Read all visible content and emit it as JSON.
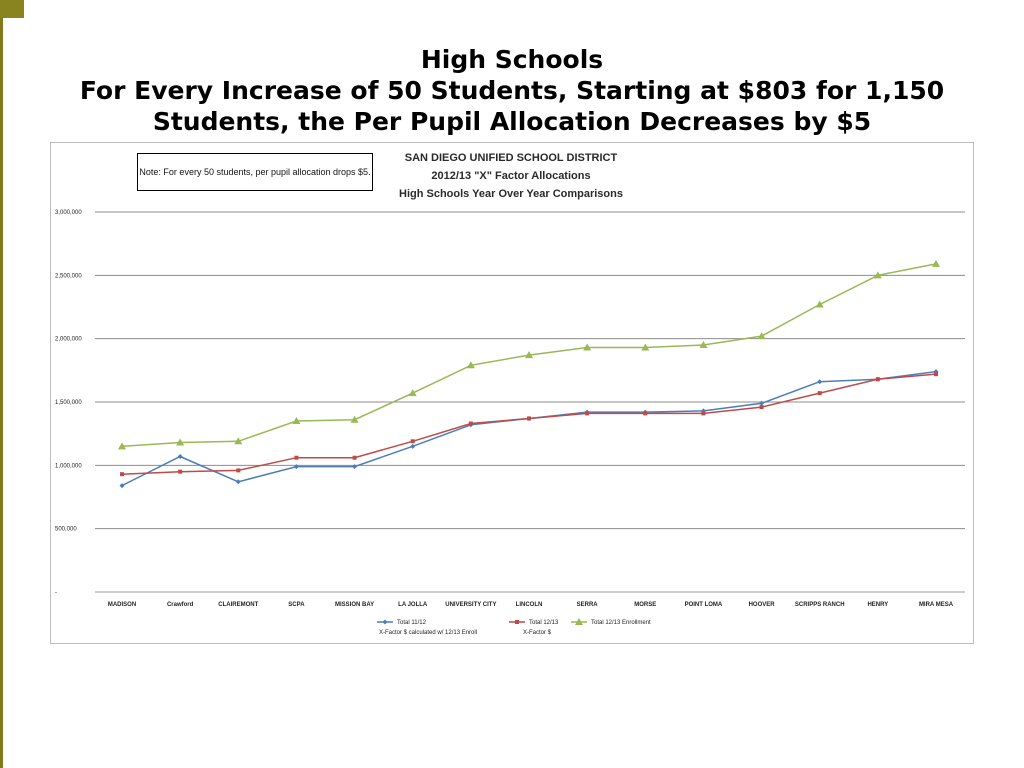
{
  "slide": {
    "title_lines": [
      "High Schools",
      "For Every Increase of 50 Students, Starting at $803 for 1,150",
      "Students, the Per Pupil Allocation Decreases by $5"
    ],
    "accent_color": "#7f7a1c"
  },
  "chart_data": {
    "type": "line",
    "title_lines": [
      "SAN DIEGO UNIFIED SCHOOL DISTRICT",
      "2012/13 \"X\" Factor Allocations",
      "High Schools Year Over Year Comparisons"
    ],
    "note": "Note: For every 50 students, per pupil allocation drops $5.",
    "categories": [
      "MADISON",
      "Crawford",
      "CLAIREMONT",
      "SCPA",
      "MISSION BAY",
      "LA JOLLA",
      "UNIVERSITY CITY",
      "LINCOLN",
      "SERRA",
      "MORSE",
      "POINT LOMA",
      "HOOVER",
      "SCRIPPS RANCH",
      "HENRY",
      "MIRA MESA"
    ],
    "y_ticks": [
      {
        "value": 0,
        "label": "-"
      },
      {
        "value": 500000,
        "label": "500,000"
      },
      {
        "value": 1000000,
        "label": "1,000,000"
      },
      {
        "value": 1500000,
        "label": "1,500,000"
      },
      {
        "value": 2000000,
        "label": "2,000,000"
      },
      {
        "value": 2500000,
        "label": "2,500,000"
      },
      {
        "value": 3000000,
        "label": "3,000,000"
      }
    ],
    "ylim": [
      0,
      3000000
    ],
    "grid": true,
    "legend_position": "bottom",
    "series": [
      {
        "name": "Total 11/12",
        "label_line2": "X-Factor $ calculated w/ 12/13 Enroll",
        "color": "#4a7ebb",
        "marker": "diamond",
        "values": [
          840000,
          1070000,
          870000,
          990000,
          990000,
          1150000,
          1320000,
          1370000,
          1420000,
          1420000,
          1430000,
          1490000,
          1660000,
          1680000,
          1740000
        ]
      },
      {
        "name": "Total 12/13",
        "label_line2": "X-Factor $",
        "color": "#be4b48",
        "marker": "square",
        "values": [
          930000,
          950000,
          960000,
          1060000,
          1060000,
          1190000,
          1330000,
          1370000,
          1410000,
          1410000,
          1410000,
          1460000,
          1570000,
          1680000,
          1720000
        ]
      },
      {
        "name": "Total 12/13 Enrollment",
        "label_line2": "",
        "color": "#98b954",
        "marker": "triangle",
        "values": [
          1150000,
          1180000,
          1190000,
          1350000,
          1360000,
          1570000,
          1790000,
          1870000,
          1930000,
          1930000,
          1950000,
          2020000,
          2270000,
          2500000,
          2590000
        ]
      }
    ]
  }
}
